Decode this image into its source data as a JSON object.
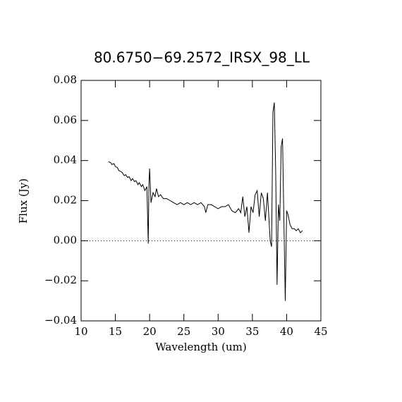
{
  "chart_data": {
    "type": "line",
    "title": "80.6750−69.2572_IRSX_98_LL",
    "x_label": "Wavelength (um)",
    "y_label": "Flux (Jy)",
    "xlim": [
      10,
      45
    ],
    "ylim": [
      -0.04,
      0.08
    ],
    "xticks": [
      10,
      15,
      20,
      25,
      30,
      35,
      40,
      45
    ],
    "yticks": [
      {
        "value": -0.04,
        "label": "−0.04"
      },
      {
        "value": -0.02,
        "label": "−0.02"
      },
      {
        "value": 0,
        "label": "0.00"
      },
      {
        "value": 0.02,
        "label": "0.02"
      },
      {
        "value": 0.04,
        "label": "0.04"
      },
      {
        "value": 0.06,
        "label": "0.06"
      },
      {
        "value": 0.08,
        "label": "0.08"
      }
    ],
    "zero_line": 0,
    "grid": false,
    "series": [
      {
        "color": "#000000",
        "x": [
          14,
          14.3,
          14.5,
          14.8,
          15,
          15.3,
          15.5,
          15.8,
          16,
          16.3,
          16.5,
          16.8,
          17,
          17.3,
          17.5,
          17.8,
          18,
          18.3,
          18.5,
          18.8,
          19,
          19.3,
          19.6,
          19.8,
          19.9,
          20.0,
          20.2,
          20.5,
          20.8,
          21,
          21.3,
          21.6,
          22,
          22.5,
          23,
          23.5,
          24,
          24.5,
          25,
          25.5,
          26,
          26.5,
          27,
          27.5,
          28,
          28.2,
          28.5,
          29,
          29.5,
          30,
          30.5,
          31,
          31.5,
          32,
          32.5,
          33,
          33.3,
          33.6,
          33.9,
          34.2,
          34.5,
          34.8,
          35.1,
          35.4,
          35.7,
          36,
          36.3,
          36.6,
          36.9,
          37.2,
          37.4,
          37.6,
          37.8,
          38.0,
          38.2,
          38.4,
          38.6,
          38.8,
          39.0,
          39.2,
          39.4,
          39.6,
          39.8,
          40.0,
          40.2,
          40.5,
          40.8,
          41.1,
          41.4,
          41.7,
          42.0,
          42.3
        ],
        "values": [
          0.0394,
          0.039,
          0.038,
          0.0385,
          0.037,
          0.0365,
          0.035,
          0.0345,
          0.034,
          0.0325,
          0.033,
          0.0315,
          0.032,
          0.03,
          0.031,
          0.0295,
          0.03,
          0.028,
          0.029,
          0.027,
          0.028,
          0.025,
          0.027,
          -0.0014,
          0.028,
          0.036,
          0.019,
          0.024,
          0.022,
          0.026,
          0.022,
          0.023,
          0.021,
          0.021,
          0.02,
          0.019,
          0.018,
          0.019,
          0.018,
          0.019,
          0.018,
          0.019,
          0.018,
          0.019,
          0.017,
          0.014,
          0.018,
          0.018,
          0.017,
          0.016,
          0.017,
          0.017,
          0.018,
          0.015,
          0.014,
          0.016,
          0.014,
          0.022,
          0.012,
          0.017,
          0.004,
          0.017,
          0.014,
          0.023,
          0.025,
          0.012,
          0.024,
          0.021,
          0.01,
          0.024,
          0.012,
          0.0,
          -0.003,
          0.064,
          0.069,
          0.035,
          -0.022,
          0.018,
          0.01,
          0.047,
          0.051,
          0.01,
          -0.03,
          0.015,
          0.013,
          0.008,
          0.006,
          0.006,
          0.005,
          0.006,
          0.004,
          0.005
        ]
      }
    ]
  }
}
